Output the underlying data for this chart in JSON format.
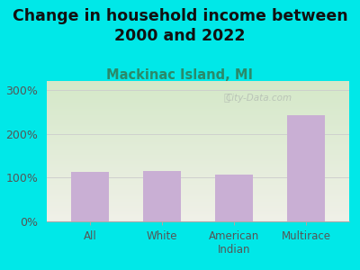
{
  "title": "Change in household income between\n2000 and 2022",
  "subtitle": "Mackinac Island, MI",
  "categories": [
    "All",
    "White",
    "American\nIndian",
    "Multirace"
  ],
  "values": [
    112,
    115,
    107,
    243
  ],
  "bar_color": "#c9afd4",
  "background_outer": "#00e8e8",
  "bg_top_left": "#d4e8c8",
  "bg_bottom_right": "#f0f0e8",
  "title_fontsize": 12.5,
  "subtitle_fontsize": 10.5,
  "ylabel_ticks": [
    "0%",
    "100%",
    "200%",
    "300%"
  ],
  "ytick_values": [
    0,
    100,
    200,
    300
  ],
  "ylim": [
    0,
    320
  ],
  "watermark": "City-Data.com",
  "title_color": "#111111",
  "subtitle_color": "#2a8a6a",
  "tick_color": "#555555",
  "grid_color": "#cccccc"
}
